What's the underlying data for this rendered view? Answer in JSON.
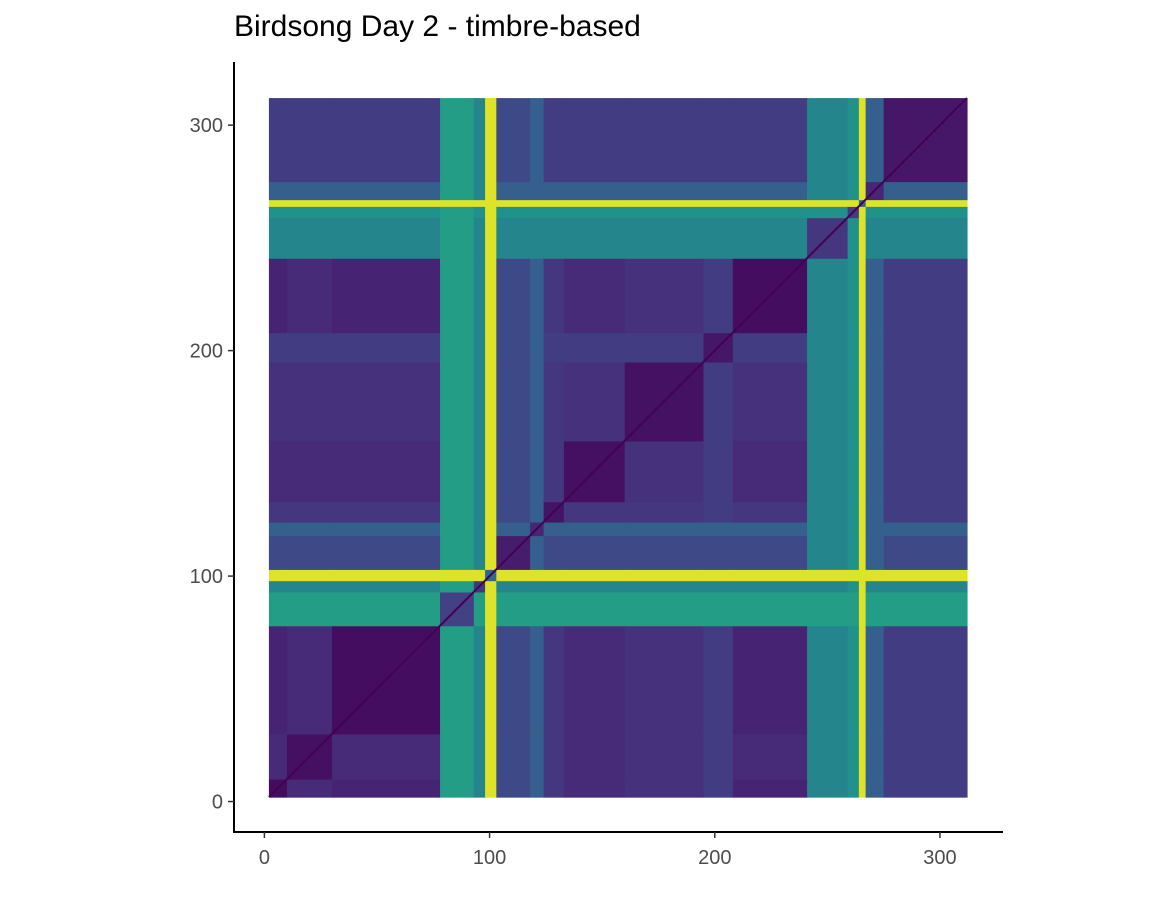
{
  "chart_data": {
    "type": "heatmap",
    "title": "Birdsong Day 2 - timbre-based",
    "xlabel": "",
    "ylabel": "",
    "xlim": [
      -13.5,
      328
    ],
    "ylim": [
      -13.5,
      328
    ],
    "x_ticks": [
      0,
      100,
      200,
      300
    ],
    "y_ticks": [
      0,
      100,
      200,
      300
    ],
    "x_tick_labels": [
      "0",
      "100",
      "200",
      "300"
    ],
    "y_tick_labels": [
      "0",
      "100",
      "200",
      "300"
    ],
    "extent": [
      2,
      312
    ],
    "colormap": "viridis",
    "legend": "none",
    "grid": false,
    "segments": [
      {
        "start": 2,
        "end": 10,
        "value": 0.08
      },
      {
        "start": 10,
        "end": 30,
        "value": 0.12
      },
      {
        "start": 30,
        "end": 78,
        "value": 0.1
      },
      {
        "start": 78,
        "end": 93,
        "value": 0.55
      },
      {
        "start": 93,
        "end": 98,
        "value": 0.45
      },
      {
        "start": 98,
        "end": 103,
        "value": 0.95
      },
      {
        "start": 103,
        "end": 118,
        "value": 0.22
      },
      {
        "start": 118,
        "end": 124,
        "value": 0.3
      },
      {
        "start": 124,
        "end": 133,
        "value": 0.16
      },
      {
        "start": 133,
        "end": 160,
        "value": 0.12
      },
      {
        "start": 160,
        "end": 195,
        "value": 0.14
      },
      {
        "start": 195,
        "end": 208,
        "value": 0.18
      },
      {
        "start": 208,
        "end": 241,
        "value": 0.1
      },
      {
        "start": 241,
        "end": 259,
        "value": 0.45
      },
      {
        "start": 259,
        "end": 264,
        "value": 0.5
      },
      {
        "start": 264,
        "end": 267,
        "value": 0.95
      },
      {
        "start": 267,
        "end": 275,
        "value": 0.3
      },
      {
        "start": 275,
        "end": 312,
        "value": 0.18
      }
    ],
    "diagonal_value": 0.0
  }
}
